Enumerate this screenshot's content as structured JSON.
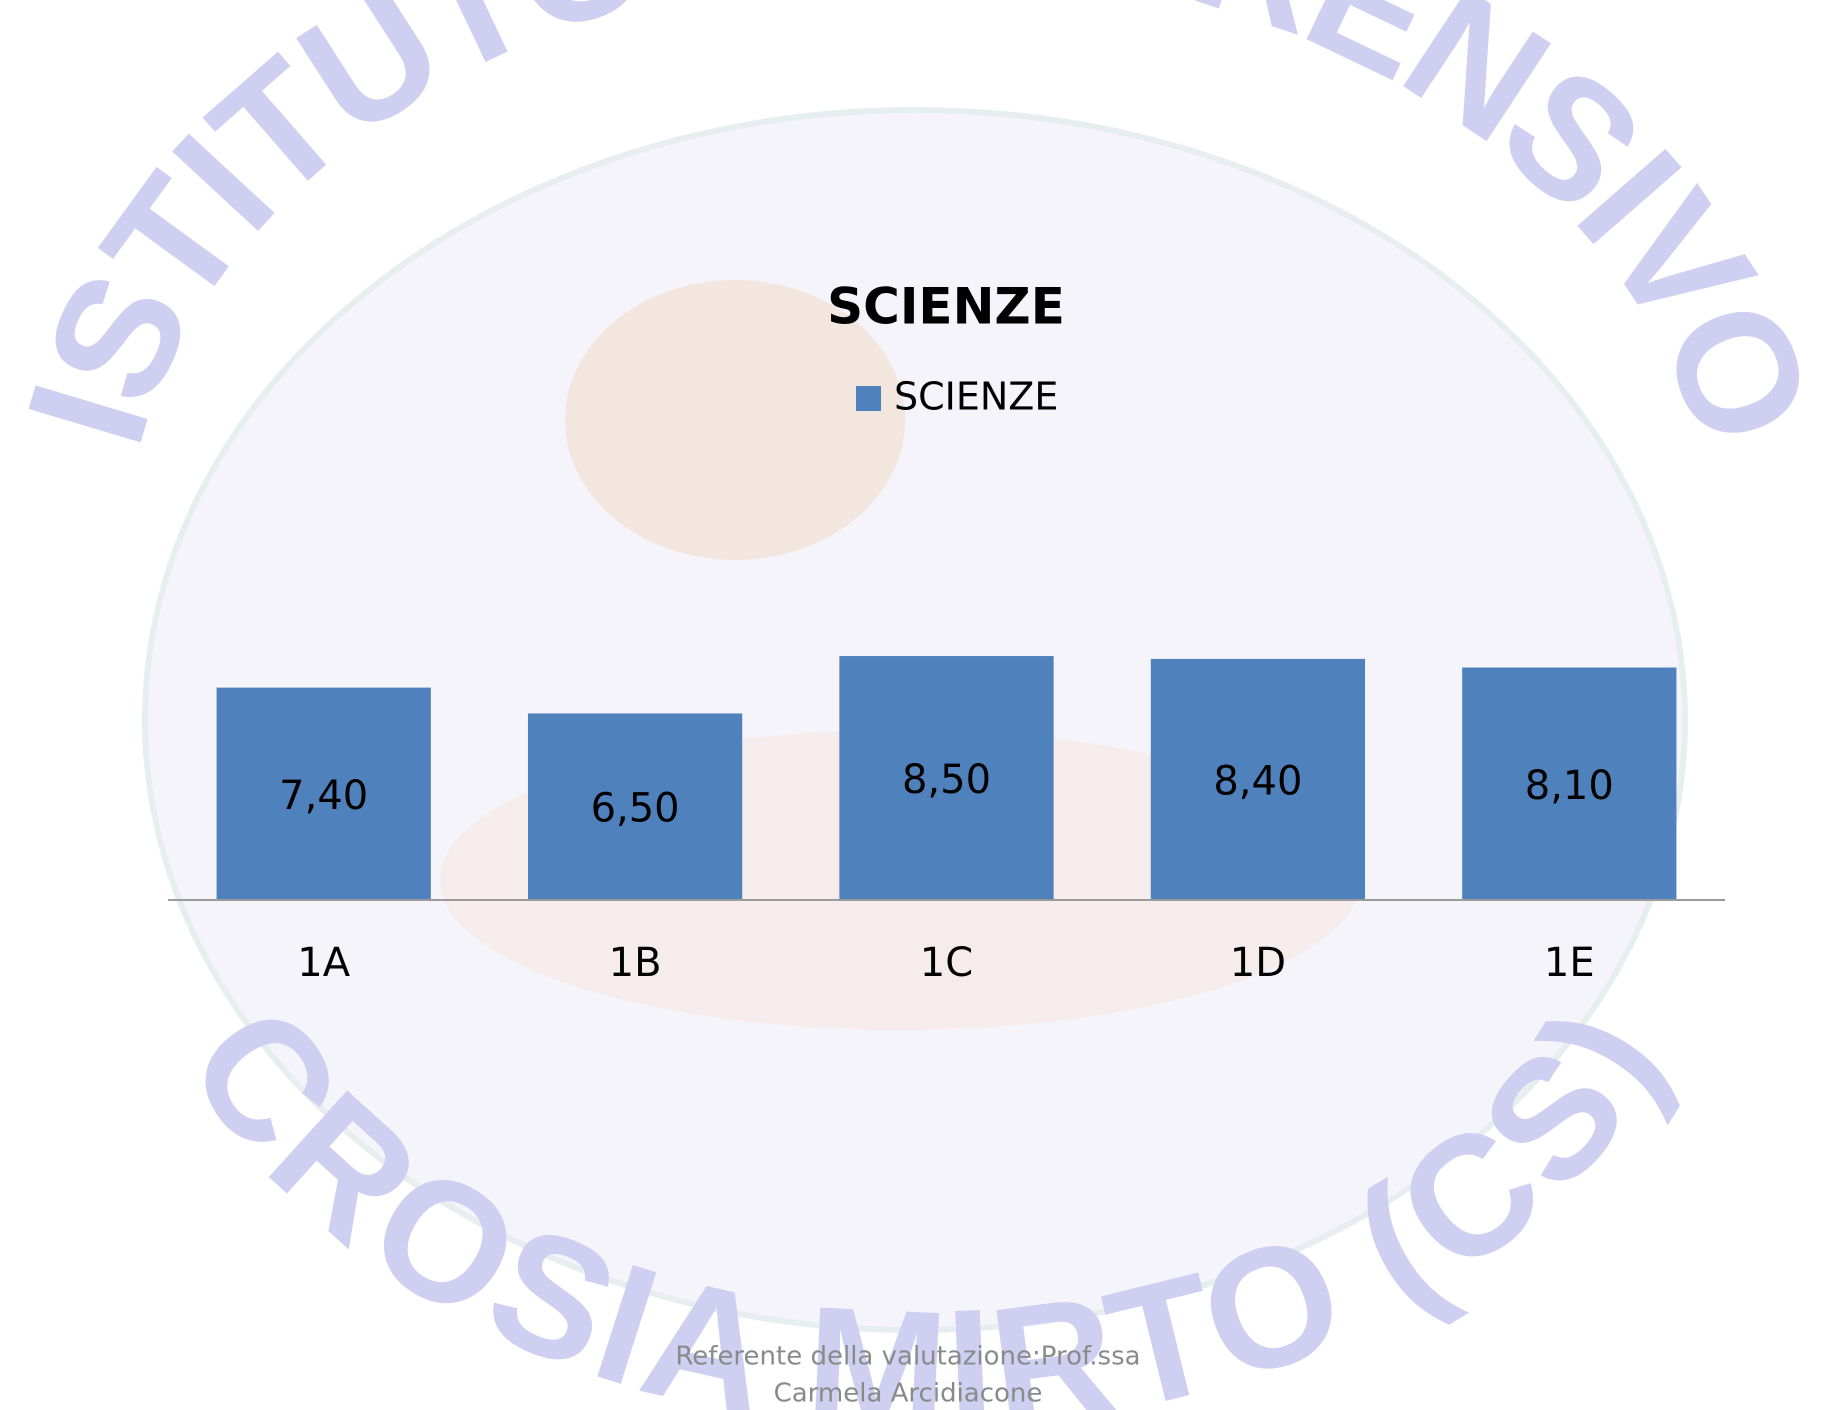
{
  "watermark": {
    "top": "ISTITUTO COMPRENSIVO",
    "bottom": "CROSIA MIRTO (CS)"
  },
  "chart_data": {
    "type": "bar",
    "title": "SCIENZE",
    "categories": [
      "1A",
      "1B",
      "1C",
      "1D",
      "1E"
    ],
    "series": [
      {
        "name": "SCIENZE",
        "color": "#4f81bd",
        "values": [
          7.4,
          6.5,
          8.5,
          8.4,
          8.1
        ],
        "value_labels": [
          "7,40",
          "6,50",
          "8,50",
          "8,40",
          "8,10"
        ]
      }
    ],
    "ylim": [
      0,
      10
    ]
  },
  "footer": {
    "lines": [
      "Referente della valutazione:Prof.ssa",
      "Carmela Arcidiacone"
    ]
  }
}
